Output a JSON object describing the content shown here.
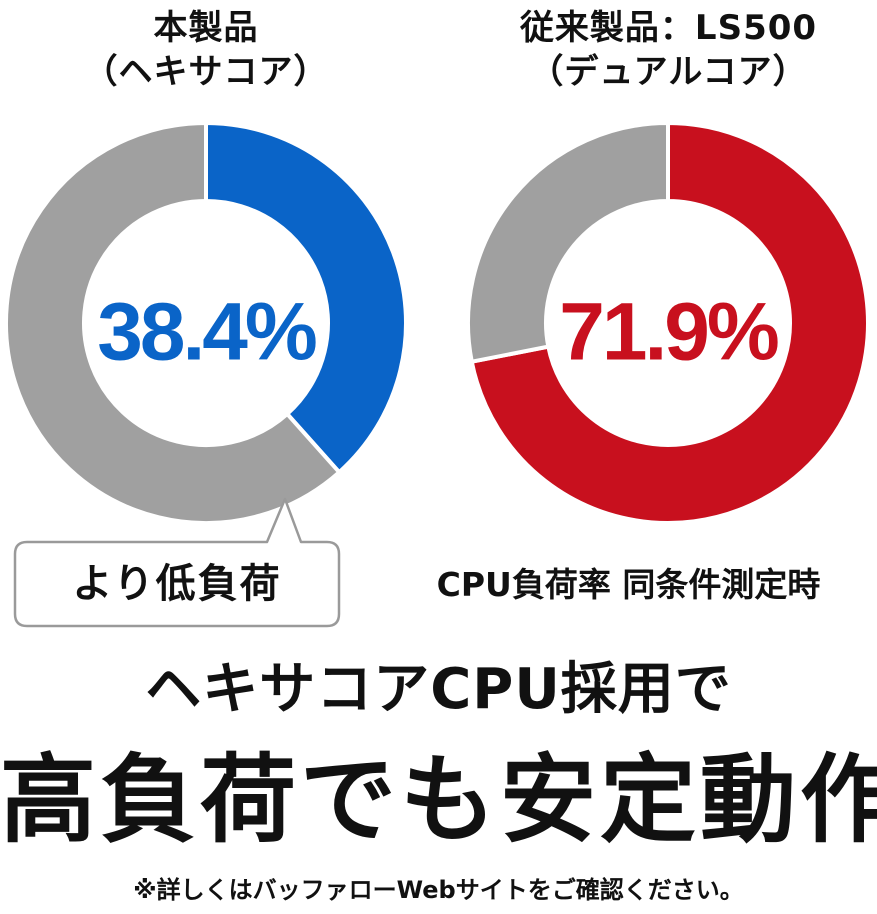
{
  "chart_data": [
    {
      "type": "pie",
      "title_line1": "本製品",
      "title_line2": "（ヘキサコア）",
      "value_label": "38.4%",
      "values": [
        38.4,
        61.6
      ],
      "colors": [
        "#0a64c8",
        "#a0a0a0"
      ]
    },
    {
      "type": "pie",
      "title_line1": "従来製品：LS500",
      "title_line2": "（デュアルコア）",
      "value_label": "71.9%",
      "values": [
        71.9,
        28.1
      ],
      "colors": [
        "#c8101e",
        "#a0a0a0"
      ]
    }
  ],
  "callout": {
    "label": "より低負荷"
  },
  "condition_note": "CPU負荷率 同条件測定時",
  "headline_line1": "ヘキサコアCPU採用で",
  "headline_line2": "高負荷でも安定動作",
  "footnote": "※詳しくはバッファローWebサイトをご確認ください。"
}
